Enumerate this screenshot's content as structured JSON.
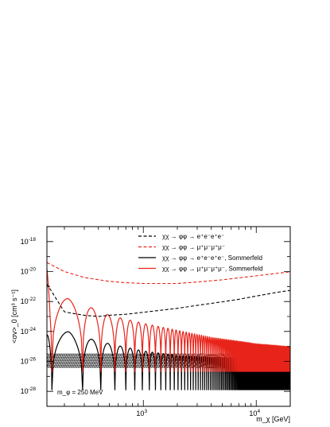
{
  "chart_data": {
    "type": "line",
    "title": "",
    "xlabel": "m_χ [GeV]",
    "ylabel": "<σv>_0 [cm³ s⁻¹]",
    "x_scale": "log",
    "y_scale": "log",
    "xlim": [
      140,
      20000
    ],
    "ylim": [
      1e-29,
      1e-17
    ],
    "x_ticks": [
      {
        "value": 1000,
        "label": "10",
        "exp": "3"
      },
      {
        "value": 10000,
        "label": "10",
        "exp": "4"
      }
    ],
    "y_ticks": [
      {
        "value": 1e-18,
        "label": "10",
        "exp": "-18"
      },
      {
        "value": 1e-20,
        "label": "10",
        "exp": "-20"
      },
      {
        "value": 1e-22,
        "label": "10",
        "exp": "-22"
      },
      {
        "value": 1e-24,
        "label": "10",
        "exp": "-24"
      },
      {
        "value": 1e-26,
        "label": "10",
        "exp": "-26"
      },
      {
        "value": 1e-28,
        "label": "10",
        "exp": "-28"
      }
    ],
    "grid": false,
    "legend_position": "top-right",
    "legend": [
      {
        "text": "χχ → φφ → e⁺e⁻e⁺e⁻",
        "color": "#000000",
        "dash": true
      },
      {
        "text": "χχ → φφ → μ⁺μ⁻μ⁺μ⁻",
        "color": "#e8241a",
        "dash": true
      },
      {
        "text": "χχ → φφ → e⁺e⁻e⁺e⁻, Sommerfeld",
        "color": "#000000",
        "dash": false
      },
      {
        "text": "χχ → φφ → μ⁺μ⁻μ⁺μ⁻, Sommerfeld",
        "color": "#e8241a",
        "dash": false
      }
    ],
    "annotation": "m_φ = 250 MeV",
    "band": {
      "y_low": 3.6e-27,
      "y_high": 3.4e-26,
      "color": "#000000"
    },
    "series": [
      {
        "kind": "dashed",
        "color": "#000000",
        "x": [
          140,
          200,
          300,
          400,
          500,
          700,
          1000,
          2000,
          3000,
          5000,
          7000,
          10000,
          15000,
          20000
        ],
        "y": [
          1.5e-21,
          2e-23,
          1.2e-23,
          1e-23,
          1.2e-23,
          1.4e-23,
          1.9e-23,
          3.5e-23,
          5.5e-23,
          9.5e-23,
          1.4e-22,
          2.3e-22,
          4e-22,
          5.5e-22
        ]
      },
      {
        "kind": "dashed",
        "color": "#e8241a",
        "x": [
          140,
          200,
          300,
          500,
          700,
          1000,
          2000,
          3000,
          5000,
          7000,
          10000,
          15000,
          20000
        ],
        "y": [
          4e-20,
          1e-20,
          4e-21,
          2.2e-21,
          1.8e-21,
          1.6e-21,
          1.6e-21,
          2e-21,
          2.8e-21,
          3.8e-21,
          5.2e-21,
          7.5e-21,
          9.5e-21
        ]
      },
      {
        "kind": "resonant",
        "color": "#e8241a",
        "x": [
          140,
          150,
          175,
          215,
          260,
          300,
          500,
          1000,
          2000,
          4000,
          6000,
          8000,
          10000,
          15000,
          20000
        ],
        "envelope": [
          1.5e-20,
          2e-22,
          1.2e-22,
          1.6e-22,
          1e-22,
          6e-23,
          1.2e-23,
          3.5e-24,
          1.2e-24,
          4e-25,
          2.5e-25,
          1.8e-25,
          1.4e-25,
          1.1e-25,
          9e-26
        ],
        "baseline": 1e-26,
        "zeros_at": [
          155,
          290,
          420,
          560,
          700,
          840,
          980,
          1130,
          1280,
          1430,
          1580,
          1730
        ],
        "zero_depth": 2e-27
      },
      {
        "kind": "resonant",
        "color": "#000000",
        "x": [
          140,
          180,
          220,
          260,
          300,
          500,
          1000,
          2000,
          4000,
          10000,
          20000
        ],
        "envelope": [
          6e-25,
          7e-25,
          1e-24,
          6e-25,
          4e-25,
          1.5e-25,
          5e-26,
          2.5e-26,
          1.8e-26,
          1.4e-26,
          1.3e-26
        ],
        "baseline": 3.6e-27,
        "zeros_at": [
          155,
          290,
          420,
          560,
          700,
          840,
          980,
          1130,
          1280,
          1430,
          1580,
          1730
        ],
        "zero_depth": 1.2e-28
      }
    ]
  }
}
